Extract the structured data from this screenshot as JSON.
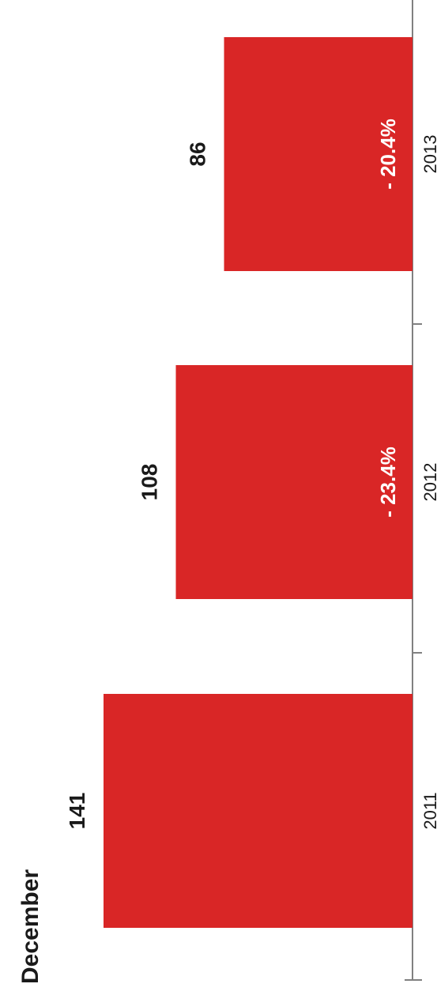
{
  "chart_data": {
    "type": "bar",
    "orientation": "rotated",
    "title": "December",
    "categories": [
      "2011",
      "2012",
      "2013"
    ],
    "values": [
      141,
      108,
      86
    ],
    "change_labels": [
      "",
      "- 23.4%",
      "- 20.4%"
    ],
    "ylim": [
      0,
      150
    ],
    "grid": false,
    "bar_color": "#d92626",
    "axis_color": "#808080"
  }
}
